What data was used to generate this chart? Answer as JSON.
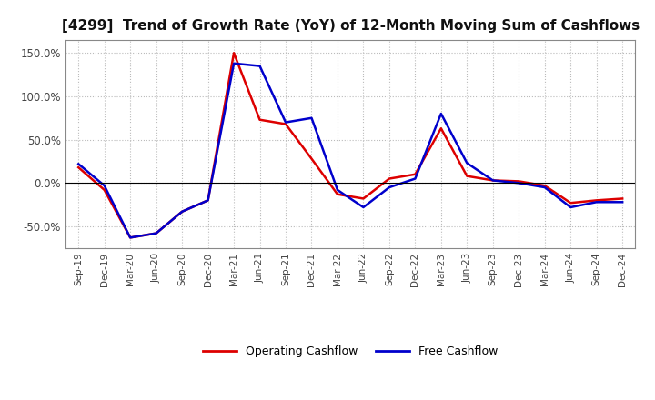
{
  "title": "[4299]  Trend of Growth Rate (YoY) of 12-Month Moving Sum of Cashflows",
  "x_labels": [
    "Sep-19",
    "Dec-19",
    "Mar-20",
    "Jun-20",
    "Sep-20",
    "Dec-20",
    "Mar-21",
    "Jun-21",
    "Sep-21",
    "Dec-21",
    "Mar-22",
    "Jun-22",
    "Sep-22",
    "Dec-22",
    "Mar-23",
    "Jun-23",
    "Sep-23",
    "Dec-23",
    "Mar-24",
    "Jun-24",
    "Sep-24",
    "Dec-24"
  ],
  "operating_cashflow": [
    18,
    -8,
    -63,
    -58,
    -33,
    -20,
    150,
    73,
    68,
    28,
    -13,
    -18,
    5,
    10,
    63,
    8,
    3,
    2,
    -3,
    -23,
    -20,
    -18
  ],
  "free_cashflow": [
    22,
    -3,
    -63,
    -58,
    -33,
    -20,
    138,
    135,
    70,
    75,
    -8,
    -28,
    -5,
    5,
    80,
    23,
    3,
    0,
    -5,
    -28,
    -22,
    -22
  ],
  "op_color": "#dd0000",
  "fc_color": "#0000cc",
  "ylim": [
    -75,
    165
  ],
  "yticks": [
    -50,
    0,
    50,
    100,
    150
  ],
  "bg_color": "#ffffff",
  "plot_bg": "#ffffff",
  "grid_color": "#bbbbbb",
  "legend_labels": [
    "Operating Cashflow",
    "Free Cashflow"
  ]
}
